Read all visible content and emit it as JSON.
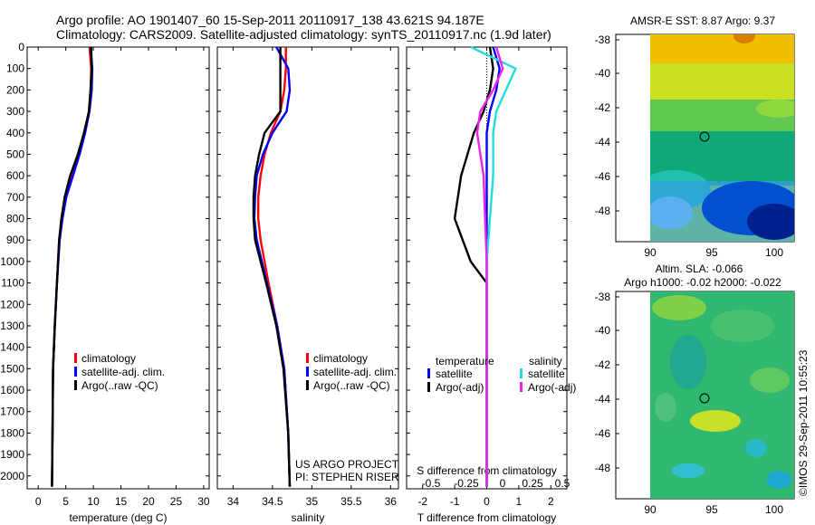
{
  "header": {
    "line1": "Argo profile: AO 1901407_60 15-Sep-2011 20110917_138 43.621S 94.187E",
    "line2": "Climatology: CARS2009. Satellite-adjusted climatology: synTS_20110917.nc (1.9d later)"
  },
  "colors": {
    "red": "#ff0000",
    "blue": "#0000ff",
    "black": "#000000",
    "cyan": "#22dddd",
    "magenta": "#ee22ee"
  },
  "depth_ticks": [
    "0",
    "100",
    "200",
    "300",
    "400",
    "500",
    "600",
    "700",
    "800",
    "900",
    "1000",
    "1100",
    "1200",
    "1300",
    "1400",
    "1500",
    "1600",
    "1700",
    "1800",
    "1900",
    "2000"
  ],
  "chart_data": [
    {
      "type": "line",
      "xlabel": "temperature (deg C)",
      "xlim": [
        -2,
        31
      ],
      "ylim": [
        2060,
        0
      ],
      "xticks": [
        "0",
        "5",
        "10",
        "15",
        "20",
        "25",
        "30"
      ],
      "legend": [
        "climatology",
        "satellite-adj. clim.",
        "Argo(..raw -QC)"
      ],
      "series": [
        {
          "name": "climatology",
          "color": "red",
          "x": [
            9.3,
            9.6,
            9.5,
            9.2,
            8.4,
            7.4,
            6.2,
            5.0,
            4.3,
            3.8,
            3.4,
            3.0,
            2.7,
            2.6,
            2.5
          ],
          "y": [
            0,
            100,
            200,
            300,
            400,
            500,
            600,
            700,
            800,
            900,
            1100,
            1300,
            1500,
            1800,
            2050
          ]
        },
        {
          "name": "satellite-adj. clim.",
          "color": "blue",
          "x": [
            9.5,
            9.8,
            9.7,
            9.3,
            8.5,
            7.5,
            6.3,
            5.1,
            4.4,
            3.9,
            3.4,
            3.0,
            2.7,
            2.6,
            2.5
          ],
          "y": [
            0,
            100,
            200,
            300,
            400,
            500,
            600,
            700,
            800,
            900,
            1100,
            1300,
            1500,
            1800,
            2050
          ]
        },
        {
          "name": "Argo(..raw -QC)",
          "color": "black",
          "x": [
            9.6,
            9.7,
            9.5,
            9.2,
            8.3,
            7.2,
            5.8,
            4.8,
            4.2,
            3.8,
            3.4,
            3.0,
            2.7,
            2.6,
            2.5
          ],
          "y": [
            0,
            100,
            200,
            300,
            400,
            500,
            600,
            700,
            800,
            900,
            1100,
            1300,
            1500,
            1800,
            2050
          ]
        }
      ]
    },
    {
      "type": "line",
      "xlabel": "salinity",
      "xlim": [
        33.8,
        36.1
      ],
      "ylim": [
        2060,
        0
      ],
      "xticks": [
        "34",
        "34.5",
        "35",
        "35.5",
        "36"
      ],
      "legend": [
        "climatology",
        "satellite-adj. clim.",
        "Argo(..raw -QC)"
      ],
      "series": [
        {
          "name": "climatology",
          "color": "red",
          "x": [
            34.67,
            34.67,
            34.65,
            34.6,
            34.48,
            34.4,
            34.35,
            34.32,
            34.32,
            34.35,
            34.45,
            34.56,
            34.65,
            34.7,
            34.72
          ],
          "y": [
            0,
            100,
            200,
            300,
            400,
            500,
            600,
            700,
            800,
            900,
            1100,
            1300,
            1500,
            1800,
            2050
          ]
        },
        {
          "name": "satellite-adj. clim.",
          "color": "blue",
          "x": [
            34.55,
            34.7,
            34.72,
            34.68,
            34.5,
            34.38,
            34.3,
            34.28,
            34.27,
            34.3,
            34.43,
            34.56,
            34.65,
            34.7,
            34.72
          ],
          "y": [
            0,
            100,
            200,
            300,
            400,
            500,
            600,
            700,
            800,
            900,
            1100,
            1300,
            1500,
            1800,
            2050
          ]
        },
        {
          "name": "Argo(..raw -QC)",
          "color": "black",
          "x": [
            34.6,
            34.6,
            34.6,
            34.6,
            34.4,
            34.33,
            34.28,
            34.26,
            34.26,
            34.28,
            34.42,
            34.55,
            34.64,
            34.7,
            34.72
          ],
          "y": [
            0,
            100,
            200,
            300,
            400,
            500,
            600,
            700,
            800,
            900,
            1100,
            1300,
            1500,
            1800,
            2050
          ]
        }
      ]
    },
    {
      "type": "line",
      "xlabel": "T difference from climatology",
      "xlabel2": "S difference from climatology",
      "xlim": [
        -2.5,
        2.5
      ],
      "ylim": [
        2060,
        0
      ],
      "xticks": [
        "-2",
        "-1",
        "0",
        "1",
        "2"
      ],
      "xticks_s": [
        "-0.5",
        "-0.25",
        "0",
        "0.25",
        "0.5"
      ],
      "legend_headers": [
        "temperature",
        "salinity"
      ],
      "legend": [
        "satellite",
        "Argo(-adj)",
        "satellite",
        "Argo(-adj)"
      ],
      "series": [
        {
          "name": "satellite",
          "color": "blue",
          "x": [
            0.2,
            0.4,
            0.3,
            0.1,
            0,
            0,
            0,
            0,
            0,
            0,
            0,
            0,
            0
          ],
          "y": [
            0,
            100,
            200,
            300,
            400,
            600,
            800,
            1000,
            1200,
            1400,
            1600,
            1800,
            2050
          ]
        },
        {
          "name": "Argo(-adj)",
          "color": "black",
          "x": [
            0.1,
            0.2,
            0.1,
            -0.1,
            -0.4,
            -0.8,
            -1.0,
            -0.5,
            0,
            0,
            0,
            0,
            0
          ],
          "y": [
            0,
            100,
            200,
            300,
            400,
            600,
            800,
            1000,
            1100,
            1400,
            1600,
            1800,
            2050
          ]
        },
        {
          "name": "satellite",
          "color": "cyan",
          "x": [
            -0.5,
            0.9,
            0.6,
            0.3,
            0.2,
            0.2,
            0.1,
            0,
            0,
            0,
            0,
            0
          ],
          "y": [
            0,
            100,
            200,
            300,
            400,
            600,
            800,
            1000,
            1200,
            1600,
            1800,
            2050
          ]
        },
        {
          "name": "Argo(-adj)",
          "color": "magenta",
          "x": [
            0.3,
            0.5,
            0.2,
            -0.2,
            -0.3,
            -0.1,
            -0.05,
            0,
            0,
            0,
            0,
            0
          ],
          "y": [
            0,
            100,
            200,
            300,
            400,
            600,
            800,
            1000,
            1200,
            1600,
            1800,
            2050
          ]
        }
      ]
    },
    {
      "type": "heatmap",
      "title": "AMSR-E SST: 8.87 Argo: 9.37",
      "xticks": [
        "90",
        "95",
        "100"
      ],
      "yticks": [
        "-38",
        "-40",
        "-42",
        "-44",
        "-46",
        "-48"
      ]
    },
    {
      "type": "heatmap",
      "title": "Altim. SLA: -0.066",
      "subtitle": "Argo h1000: -0.02 h2000: -0.022",
      "xticks": [
        "90",
        "95",
        "100"
      ],
      "yticks": [
        "-38",
        "-40",
        "-42",
        "-44",
        "-46",
        "-48"
      ]
    }
  ],
  "footer": {
    "project": "US ARGO PROJECT",
    "pi": "PI: STEPHEN RISER",
    "stamp": "©IMOS 29-Sep-2011 10:55:23"
  }
}
